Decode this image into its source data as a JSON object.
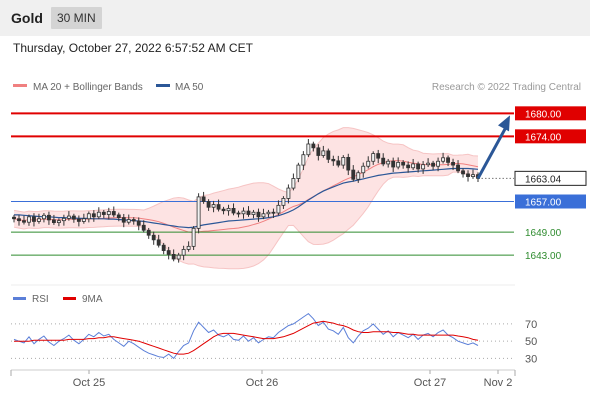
{
  "header": {
    "symbol": "Gold",
    "timeframe": "30 MIN",
    "timestamp": "Thursday, October 27, 2022 6:57:52 AM CET"
  },
  "colors": {
    "bollinger": "#f08080",
    "ma50": "#2b5797",
    "resistance": "#e00000",
    "support_blue": "#3a6fd8",
    "support_green": "#2e8b2e",
    "current": "#222222",
    "candle_up": "#f2f2f2",
    "candle_down": "#333333",
    "rsi": "#5b7fd8",
    "rsi_ma": "#e00000"
  },
  "chart_data": [
    {
      "type": "candlestick",
      "title": "",
      "legend": [
        {
          "name": "MA 20 + Bollinger Bands",
          "color": "#f08080"
        },
        {
          "name": "MA 50",
          "color": "#2b5797"
        }
      ],
      "legend_placement": "top-left",
      "credit": "Research © 2022 Trading Central",
      "ylim": [
        1636,
        1684
      ],
      "x_ticks": [
        "Oct 25",
        "Oct 26",
        "Oct 27",
        "Nov 2"
      ],
      "levels": [
        {
          "value": 1680.0,
          "label": "1680.00",
          "kind": "resistance",
          "style": "box"
        },
        {
          "value": 1674.0,
          "label": "1674.00",
          "kind": "resistance",
          "style": "box"
        },
        {
          "value": 1663.04,
          "label": "1663.04",
          "kind": "current",
          "style": "box-outline"
        },
        {
          "value": 1657.0,
          "label": "1657.00",
          "kind": "support_blue",
          "style": "box"
        },
        {
          "value": 1649.0,
          "label": "1649.00",
          "kind": "support_green",
          "style": "text"
        },
        {
          "value": 1643.0,
          "label": "1643.00",
          "kind": "support_green",
          "style": "text"
        }
      ],
      "close": [
        1652.5,
        1652.0,
        1651.6,
        1653.0,
        1651.8,
        1652.5,
        1653.4,
        1652.2,
        1651.5,
        1652.0,
        1652.6,
        1653.2,
        1652.4,
        1651.8,
        1652.5,
        1653.8,
        1653.0,
        1654.2,
        1653.6,
        1654.4,
        1653.5,
        1652.8,
        1651.6,
        1652.3,
        1651.9,
        1650.8,
        1649.5,
        1648.2,
        1647.0,
        1645.6,
        1644.2,
        1643.2,
        1642.0,
        1643.0,
        1644.5,
        1645.3,
        1650.0,
        1658.2,
        1657.0,
        1655.5,
        1656.2,
        1655.0,
        1654.6,
        1655.2,
        1654.0,
        1653.8,
        1654.5,
        1653.6,
        1654.2,
        1653.0,
        1653.8,
        1654.2,
        1654.0,
        1656.0,
        1657.8,
        1660.5,
        1663.0,
        1666.5,
        1669.2,
        1672.0,
        1671.0,
        1669.0,
        1670.2,
        1668.0,
        1667.6,
        1666.5,
        1668.5,
        1665.2,
        1662.8,
        1664.5,
        1666.2,
        1667.5,
        1669.5,
        1668.3,
        1666.8,
        1667.5,
        1666.0,
        1667.2,
        1666.5,
        1665.8,
        1666.8,
        1665.5,
        1666.6,
        1667.0,
        1666.2,
        1667.5,
        1668.4,
        1667.2,
        1666.5,
        1665.0,
        1664.2,
        1663.5,
        1664.0,
        1663.04
      ],
      "ma50": [
        1653.5,
        1653.5,
        1653.4,
        1653.3,
        1653.2,
        1653.1,
        1653.0,
        1653.0,
        1652.9,
        1652.8,
        1652.8,
        1652.7,
        1652.7,
        1652.6,
        1652.6,
        1652.6,
        1652.5,
        1652.5,
        1652.5,
        1652.4,
        1652.4,
        1652.3,
        1652.2,
        1652.1,
        1652.0,
        1651.9,
        1651.8,
        1651.6,
        1651.4,
        1651.2,
        1651.0,
        1650.8,
        1650.6,
        1650.4,
        1650.3,
        1650.2,
        1650.3,
        1650.6,
        1650.9,
        1651.1,
        1651.3,
        1651.5,
        1651.7,
        1651.9,
        1652.0,
        1652.1,
        1652.2,
        1652.3,
        1652.4,
        1652.5,
        1652.6,
        1652.8,
        1653.0,
        1653.3,
        1653.7,
        1654.2,
        1654.8,
        1655.6,
        1656.5,
        1657.4,
        1658.2,
        1659.0,
        1659.7,
        1660.3,
        1660.8,
        1661.3,
        1661.8,
        1662.1,
        1662.3,
        1662.6,
        1662.9,
        1663.2,
        1663.5,
        1663.8,
        1664.0,
        1664.2,
        1664.4,
        1664.5,
        1664.6,
        1664.7,
        1664.8,
        1664.9,
        1665.0,
        1665.1,
        1665.2,
        1665.3,
        1665.4,
        1665.5,
        1665.6,
        1665.6,
        1665.6,
        1665.6,
        1665.5,
        1665.4
      ]
    },
    {
      "type": "line",
      "title": "",
      "legend": [
        {
          "name": "RSI",
          "color": "#5b7fd8"
        },
        {
          "name": "9MA",
          "color": "#e00000"
        }
      ],
      "legend_placement": "top-left",
      "ylim": [
        20,
        85
      ],
      "y_ticks": [
        70,
        50,
        30
      ],
      "series": [
        {
          "name": "RSI",
          "values": [
            52,
            50,
            48,
            55,
            47,
            52,
            56,
            49,
            45,
            50,
            53,
            57,
            51,
            47,
            52,
            58,
            55,
            60,
            56,
            58,
            52,
            48,
            44,
            50,
            47,
            43,
            39,
            36,
            34,
            32,
            31,
            35,
            30,
            38,
            45,
            48,
            62,
            72,
            66,
            60,
            63,
            57,
            55,
            58,
            52,
            51,
            56,
            50,
            54,
            48,
            52,
            55,
            54,
            60,
            64,
            68,
            70,
            74,
            78,
            82,
            76,
            68,
            72,
            64,
            62,
            58,
            66,
            54,
            48,
            56,
            62,
            65,
            70,
            64,
            58,
            62,
            55,
            60,
            57,
            54,
            58,
            52,
            57,
            59,
            55,
            60,
            63,
            57,
            54,
            50,
            48,
            46,
            48,
            45
          ]
        },
        {
          "name": "9MA",
          "values": [
            50,
            50,
            50,
            50,
            51,
            51,
            51,
            51,
            51,
            51,
            51,
            52,
            52,
            52,
            52,
            53,
            53,
            54,
            54,
            55,
            55,
            54,
            53,
            52,
            51,
            50,
            48,
            46,
            44,
            42,
            40,
            38,
            36,
            35,
            35,
            36,
            39,
            43,
            47,
            51,
            55,
            58,
            59,
            59,
            59,
            58,
            57,
            56,
            55,
            54,
            53,
            53,
            53,
            54,
            55,
            57,
            59,
            62,
            65,
            68,
            71,
            72,
            73,
            72,
            71,
            69,
            68,
            66,
            63,
            61,
            60,
            60,
            61,
            61,
            61,
            61,
            60,
            60,
            59,
            58,
            58,
            57,
            57,
            57,
            57,
            57,
            57,
            57,
            57,
            56,
            55,
            54,
            52,
            51
          ]
        }
      ]
    }
  ]
}
